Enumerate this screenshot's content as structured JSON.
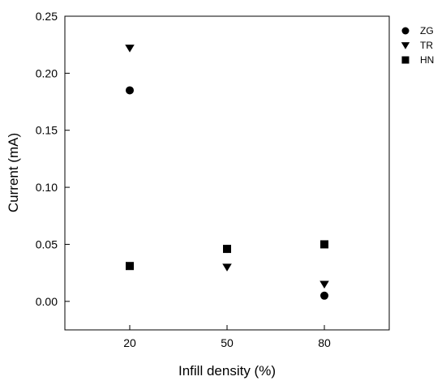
{
  "chart_data": {
    "type": "scatter",
    "xlabel": "Infill density (%)",
    "ylabel": "Current (mA)",
    "x": [
      20,
      50,
      80
    ],
    "xticks": [
      20,
      50,
      80
    ],
    "xlim": [
      0,
      100
    ],
    "yticks": [
      "0.00",
      "0.05",
      "0.10",
      "0.15",
      "0.20",
      "0.25"
    ],
    "ylim": [
      -0.025,
      0.25
    ],
    "grid": false,
    "legend_position": "top-right, outside plot",
    "series": [
      {
        "name": "ZG",
        "marker": "circle",
        "values": [
          0.185,
          0.046,
          0.005
        ]
      },
      {
        "name": "TR",
        "marker": "triangle-down",
        "values": [
          0.222,
          0.03,
          0.015
        ]
      },
      {
        "name": "HN",
        "marker": "square",
        "values": [
          0.031,
          0.046,
          0.05
        ]
      }
    ],
    "marker_color": "#000000"
  }
}
